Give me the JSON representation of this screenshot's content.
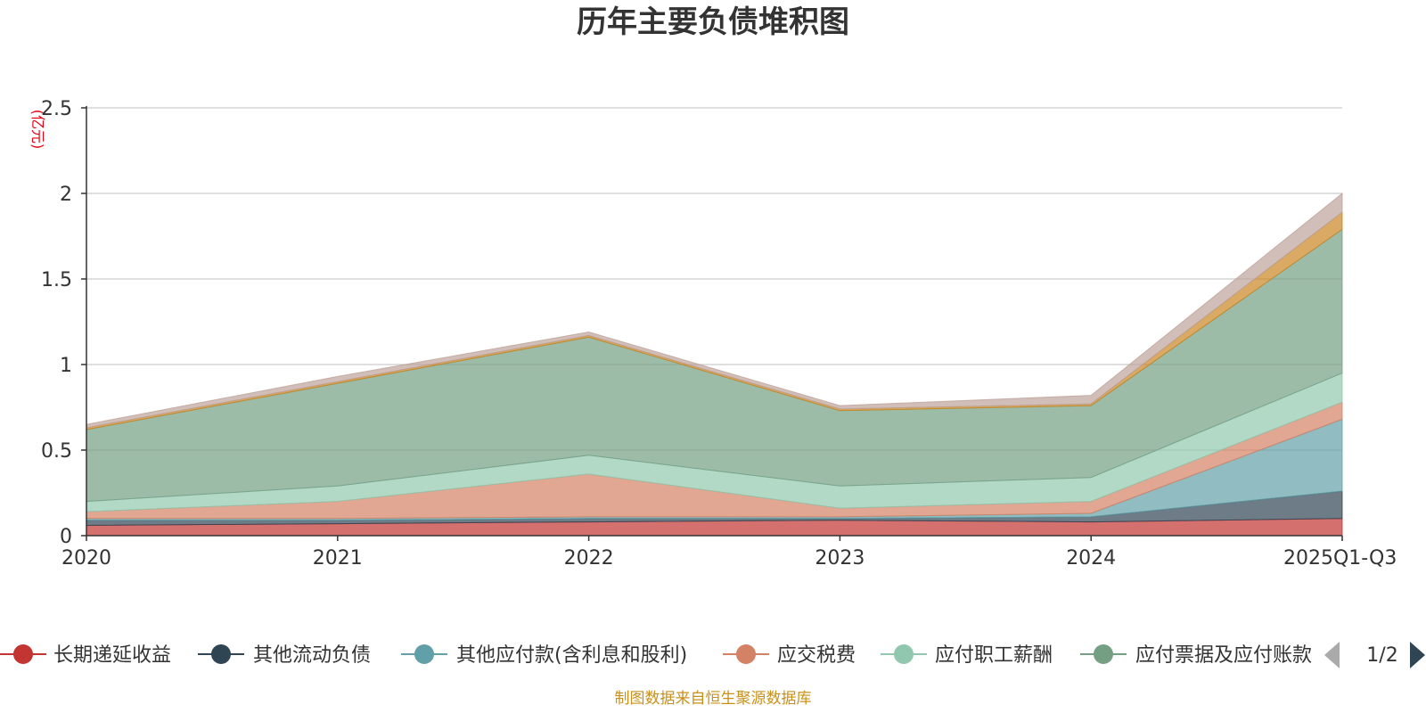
{
  "chart_data": {
    "type": "area",
    "stacked": true,
    "title": "历年主要负债堆积图",
    "ylabel": "(亿元)",
    "xlabel": "",
    "categories": [
      "2020",
      "2021",
      "2022",
      "2023",
      "2024",
      "2025Q1-Q3"
    ],
    "ylim": [
      0,
      2.5
    ],
    "yticks": [
      {
        "value": 0,
        "label": "0"
      },
      {
        "value": 0.5,
        "label": "0.5"
      },
      {
        "value": 1,
        "label": "1"
      },
      {
        "value": 1.5,
        "label": "1.5"
      },
      {
        "value": 2,
        "label": "2"
      },
      {
        "value": 2.5,
        "label": "2.5"
      }
    ],
    "grid": true,
    "series": [
      {
        "name": "长期递延收益",
        "color": "#c23531",
        "values": [
          0.06,
          0.07,
          0.08,
          0.09,
          0.08,
          0.1
        ]
      },
      {
        "name": "其他流动负债",
        "color": "#2f4554",
        "values": [
          0.03,
          0.02,
          0.02,
          0.01,
          0.03,
          0.16
        ]
      },
      {
        "name": "其他应付款(含利息和股利)",
        "color": "#61a0a8",
        "values": [
          0.01,
          0.01,
          0.01,
          0.01,
          0.02,
          0.42
        ]
      },
      {
        "name": "应交税费",
        "color": "#d48265",
        "values": [
          0.04,
          0.1,
          0.25,
          0.05,
          0.07,
          0.1
        ]
      },
      {
        "name": "应付职工薪酬",
        "color": "#91c7ae",
        "values": [
          0.06,
          0.09,
          0.11,
          0.13,
          0.14,
          0.17
        ]
      },
      {
        "name": "应付票据及应付账款",
        "color": "#749f83",
        "values": [
          0.42,
          0.6,
          0.69,
          0.44,
          0.42,
          0.84
        ]
      },
      {
        "name": "",
        "color": "#ca8622",
        "values": [
          0.01,
          0.01,
          0.01,
          0.01,
          0.01,
          0.1
        ]
      },
      {
        "name": "",
        "color": "#bda29a",
        "values": [
          0.02,
          0.03,
          0.02,
          0.02,
          0.05,
          0.11
        ]
      }
    ],
    "legend": {
      "placement": "bottom",
      "visible_items": [
        "长期递延收益",
        "其他流动负债",
        "其他应付款(含利息和股利)",
        "应交税费",
        "应付职工薪酬",
        "应付票据及应付账款"
      ],
      "page": "1/2"
    }
  },
  "footer": {
    "source": "制图数据来自恒生聚源数据库"
  }
}
